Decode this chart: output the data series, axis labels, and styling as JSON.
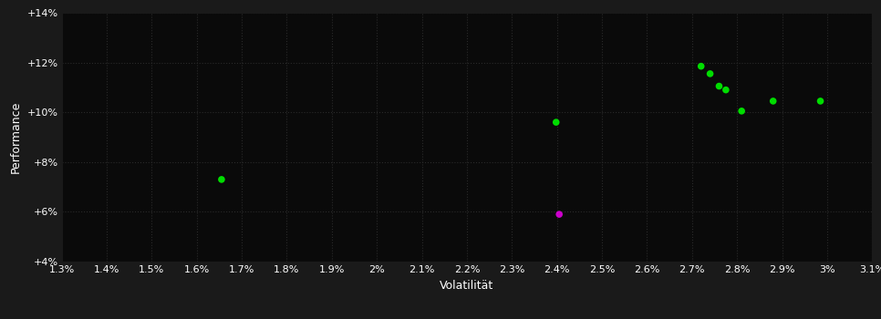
{
  "outer_bg": "#1a1a1a",
  "plot_bg": "#0a0a0a",
  "grid_color": "#2a2a2a",
  "text_color": "#ffffff",
  "xlabel": "Volatilität",
  "ylabel": "Performance",
  "xlim": [
    0.013,
    0.031
  ],
  "ylim": [
    0.04,
    0.14
  ],
  "xtick_values": [
    0.013,
    0.014,
    0.015,
    0.016,
    0.017,
    0.018,
    0.019,
    0.02,
    0.021,
    0.022,
    0.023,
    0.024,
    0.025,
    0.026,
    0.027,
    0.028,
    0.029,
    0.03,
    0.031
  ],
  "ytick_values": [
    0.04,
    0.06,
    0.08,
    0.1,
    0.12,
    0.14
  ],
  "ytick_labels": [
    "+4%",
    "+6%",
    "+8%",
    "+10%",
    "+12%",
    "+14%"
  ],
  "xtick_labels": [
    "1.3%",
    "1.4%",
    "1.5%",
    "1.6%",
    "1.7%",
    "1.8%",
    "1.9%",
    "2%",
    "2.1%",
    "2.2%",
    "2.3%",
    "2.4%",
    "2.5%",
    "2.6%",
    "2.7%",
    "2.8%",
    "2.9%",
    "3%",
    "3.1%"
  ],
  "green_points": [
    [
      0.01655,
      0.073
    ],
    [
      0.02398,
      0.096
    ],
    [
      0.0272,
      0.1185
    ],
    [
      0.0274,
      0.1155
    ],
    [
      0.0276,
      0.1105
    ],
    [
      0.02775,
      0.109
    ],
    [
      0.0281,
      0.1005
    ],
    [
      0.0288,
      0.1045
    ],
    [
      0.02985,
      0.1045
    ]
  ],
  "magenta_points": [
    [
      0.02405,
      0.059
    ]
  ],
  "green_color": "#00dd00",
  "magenta_color": "#cc00cc",
  "marker_size": 30,
  "font_size_ticks": 8,
  "font_size_labels": 9
}
